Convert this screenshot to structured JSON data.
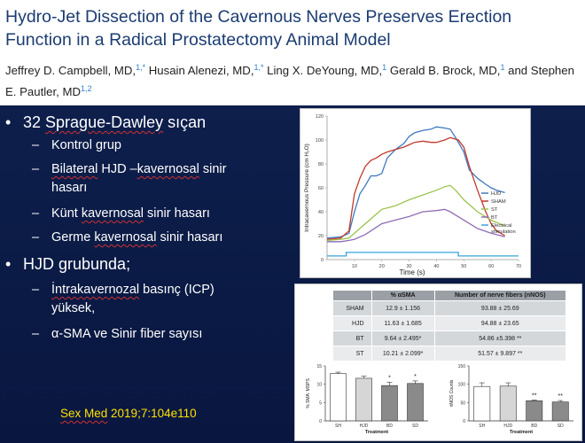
{
  "header": {
    "title": "Hydro-Jet Dissection of the Cavernous Nerves Preserves Erection Function in a Radical Prostatectomy Animal Model",
    "authors": [
      {
        "name": "Jeffrey D. Campbell, MD,",
        "sup": "1,*"
      },
      {
        "name": " Husain Alenezi, MD,",
        "sup": "1,*"
      },
      {
        "name": " Ling X. DeYoung, MD,",
        "sup": "1"
      },
      {
        "name": " Gerald B. Brock, MD,",
        "sup": "1"
      },
      {
        "name": " and Stephen E. Pautler, MD",
        "sup": "1,2"
      }
    ]
  },
  "bullets": {
    "main1_prefix": "32 ",
    "main1_word": "Sprague-Dawley",
    "main1_suffix": " sıçan",
    "sub1": "Kontrol grup",
    "sub2_a": "Bilateral",
    "sub2_b": " HJD –",
    "sub2_c": "kavernosal",
    "sub2_d": " sinir",
    "sub2_e": "hasarı",
    "sub3_a": "Künt ",
    "sub3_b": "kavernosal",
    "sub3_c": " sinir hasarı",
    "sub4_a": "Germe ",
    "sub4_b": "kavernosal",
    "sub4_c": " sinir hasarı",
    "main2": "HJD grubunda;",
    "sub5_a": "İntrakavernozal",
    "sub5_b": "  basınç (ICP)",
    "sub5_c": "yüksek,",
    "sub6": "α-SMA  ve Sinir fiber sayısı",
    "dot": "•",
    "dash": "–"
  },
  "reference": {
    "journal": "Sex Med",
    "citation": " 2019;7:104e110"
  },
  "chart_data": [
    {
      "type": "line",
      "title": "",
      "xlabel": "Time (s)",
      "ylabel": "Intracavernous Pressure (cm H₂O)",
      "xlim": [
        0,
        70
      ],
      "ylim": [
        0,
        120
      ],
      "xticks": [
        "10",
        "20",
        "30",
        "40",
        "50",
        "60",
        "70"
      ],
      "yticks": [
        "0",
        "20",
        "40",
        "60",
        "80",
        "100",
        "120"
      ],
      "legend_position": "right",
      "series": [
        {
          "name": "HJD",
          "color": "#3f78c0",
          "x": [
            0,
            5,
            8,
            10,
            12,
            14,
            16,
            18,
            20,
            22,
            25,
            28,
            30,
            32,
            35,
            38,
            40,
            43,
            45,
            47,
            50,
            52,
            55,
            58,
            60,
            62,
            65
          ],
          "y": [
            18,
            19,
            22,
            40,
            55,
            62,
            70,
            70,
            72,
            85,
            92,
            97,
            103,
            106,
            108,
            109,
            111,
            110,
            109,
            102,
            90,
            75,
            68,
            63,
            60,
            58,
            56
          ]
        },
        {
          "name": "SHAM",
          "color": "#c0392b",
          "x": [
            0,
            5,
            8,
            10,
            12,
            14,
            16,
            18,
            20,
            22,
            25,
            28,
            30,
            32,
            35,
            38,
            40,
            43,
            45,
            48,
            50,
            52,
            55,
            58,
            60,
            62,
            65
          ],
          "y": [
            17,
            18,
            24,
            55,
            68,
            78,
            83,
            85,
            88,
            90,
            92,
            94,
            96,
            98,
            99,
            98,
            98,
            100,
            102,
            100,
            94,
            78,
            58,
            40,
            30,
            24,
            20
          ]
        },
        {
          "name": "ST",
          "color": "#9bc34a",
          "x": [
            0,
            5,
            8,
            10,
            14,
            18,
            20,
            25,
            30,
            35,
            40,
            43,
            45,
            47,
            50,
            55,
            60,
            65
          ],
          "y": [
            16,
            17,
            18,
            22,
            30,
            38,
            42,
            45,
            50,
            54,
            58,
            61,
            62,
            58,
            50,
            40,
            33,
            28
          ]
        },
        {
          "name": "BT",
          "color": "#8e6db5",
          "x": [
            0,
            5,
            8,
            10,
            14,
            18,
            20,
            25,
            30,
            35,
            40,
            43,
            45,
            50,
            55,
            60,
            65
          ],
          "y": [
            15,
            15,
            16,
            17,
            21,
            27,
            30,
            33,
            36,
            40,
            41,
            42,
            40,
            33,
            26,
            22,
            19
          ]
        },
        {
          "name": "Electrical stimulation",
          "color": "#3aa3d8",
          "x": [
            0,
            5,
            7,
            7,
            48,
            48,
            70
          ],
          "y": [
            3,
            3,
            3,
            6,
            6,
            3,
            3
          ]
        }
      ]
    },
    {
      "type": "table",
      "columns": [
        "",
        "% αSMA",
        "Number of nerve fibers (nNOS)"
      ],
      "rows": [
        [
          "SHAM",
          "12.9 ± 1.156",
          "93.88 ± 25.69"
        ],
        [
          "HJD",
          "11.63 ± 1.685",
          "94.88 ± 23.65"
        ],
        [
          "BT",
          "9.64 ± 2.495*",
          "54.86 ±5.398 **"
        ],
        [
          "ST",
          "10.21 ± 2.099*",
          "51.57 ± 9.897 **"
        ]
      ]
    },
    {
      "type": "bar",
      "xlabel": "Treatment",
      "ylabel": "% SMA: MSPS",
      "ylim": [
        0,
        15
      ],
      "yticks": [
        "0",
        "5",
        "10",
        "15"
      ],
      "categories": [
        "SH",
        "HJD",
        "BD",
        "SD"
      ],
      "values": [
        12.9,
        11.63,
        9.64,
        10.21
      ],
      "errors": [
        0.4,
        0.6,
        0.9,
        0.7
      ],
      "markers": [
        "",
        "",
        "*",
        "*"
      ]
    },
    {
      "type": "bar",
      "xlabel": "Treatment",
      "ylabel": "nNOS Counts",
      "ylim": [
        0,
        150
      ],
      "yticks": [
        "0",
        "50",
        "100",
        "150"
      ],
      "categories": [
        "SH",
        "HJD",
        "BD",
        "SD"
      ],
      "values": [
        93.88,
        94.88,
        54.86,
        51.57
      ],
      "errors": [
        10,
        9,
        2,
        4
      ],
      "markers": [
        "",
        "",
        "**",
        "**"
      ]
    }
  ]
}
